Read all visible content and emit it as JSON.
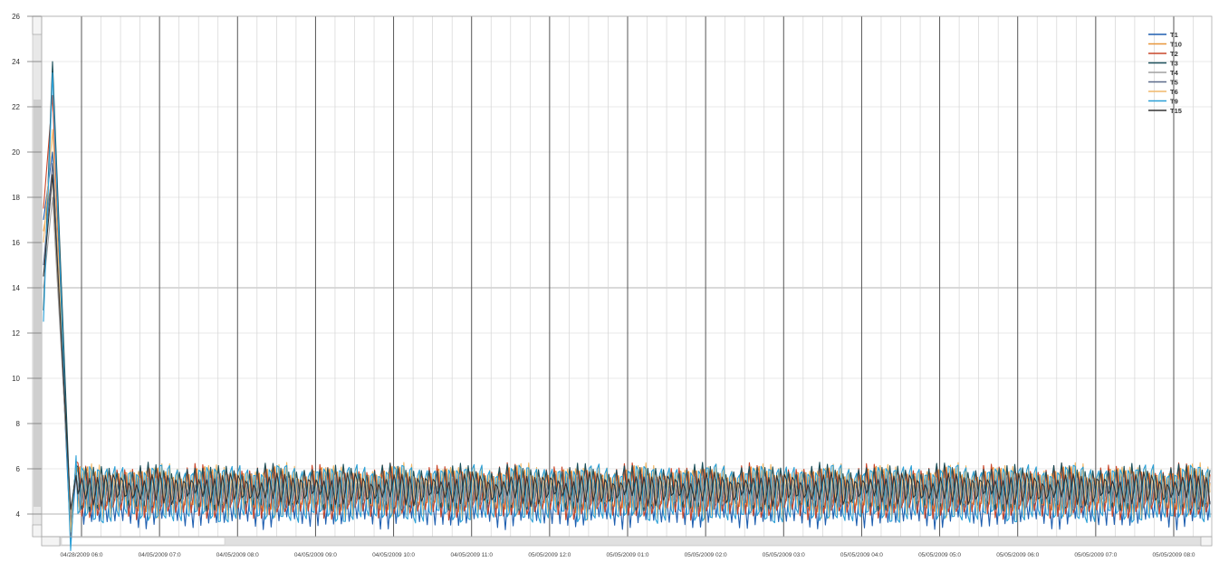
{
  "chart_data": {
    "type": "line",
    "title": "",
    "xlabel": "",
    "ylabel": "",
    "ylim": [
      3,
      26
    ],
    "y_ticks": [
      "4",
      "6",
      "8",
      "10",
      "12",
      "14",
      "16",
      "18",
      "20",
      "22",
      "24",
      "26"
    ],
    "x_tick_labels": [
      "04/28/2009 06:0",
      "04/05/2009 07:0",
      "04/05/2009 08:0",
      "04/05/2009 09:0",
      "04/05/2009 10:0",
      "04/05/2009 11:0",
      "05/05/2009 12:0",
      "05/05/2009 01:0",
      "05/05/2009 02:0",
      "05/05/2009 03:0",
      "05/05/2009 04:0",
      "05/05/2009 05:0",
      "05/05/2009 06:0",
      "05/05/2009 07:0",
      "05/05/2009 08:0"
    ],
    "grid": true,
    "legend_position": "top-right",
    "cycles": 145,
    "series": [
      {
        "name": "T1",
        "color": "#1f5fb0",
        "start": 17.0,
        "peak": 20.0,
        "base": 4.6,
        "amp": 1.0,
        "phase": 0.0
      },
      {
        "name": "T10",
        "color": "#e8963a",
        "start": 16.5,
        "peak": 19.0,
        "base": 5.1,
        "amp": 0.9,
        "phase": 0.6
      },
      {
        "name": "T2",
        "color": "#c9462a",
        "start": 17.5,
        "peak": 22.5,
        "base": 5.0,
        "amp": 1.1,
        "phase": 1.1
      },
      {
        "name": "T3",
        "color": "#1b4f5a",
        "start": 13.0,
        "peak": 24.0,
        "base": 5.2,
        "amp": 0.8,
        "phase": 1.7
      },
      {
        "name": "T4",
        "color": "#a0a0a0",
        "start": 14.0,
        "peak": 18.0,
        "base": 5.0,
        "amp": 0.6,
        "phase": 2.2
      },
      {
        "name": "T5",
        "color": "#5a6a8a",
        "start": 15.0,
        "peak": 19.5,
        "base": 4.9,
        "amp": 0.7,
        "phase": 2.8
      },
      {
        "name": "T6",
        "color": "#f0b86a",
        "start": 16.0,
        "peak": 21.0,
        "base": 5.0,
        "amp": 1.0,
        "phase": 3.3
      },
      {
        "name": "T9",
        "color": "#2a9fd6",
        "start": 12.5,
        "peak": 23.5,
        "base": 4.9,
        "amp": 1.4,
        "phase": 3.9
      },
      {
        "name": "T15",
        "color": "#333333",
        "start": 14.5,
        "peak": 19.0,
        "base": 5.1,
        "amp": 0.5,
        "phase": 4.4
      }
    ]
  }
}
